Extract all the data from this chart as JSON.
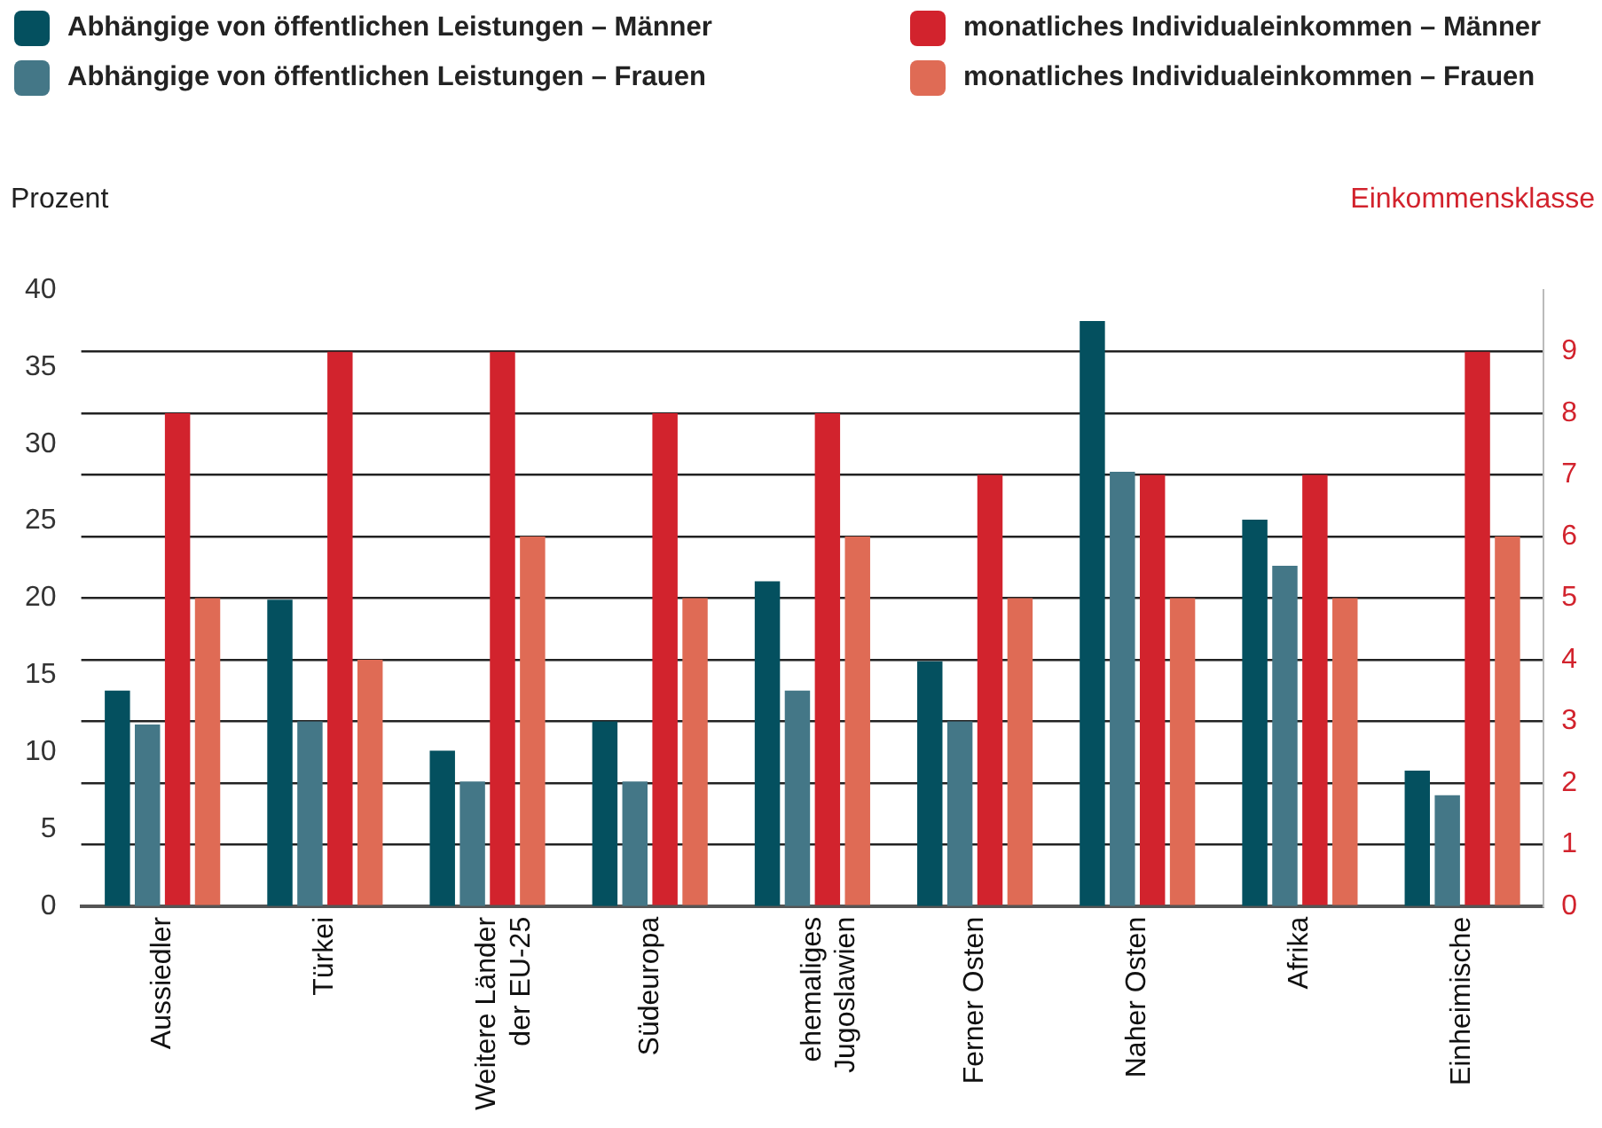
{
  "chart_data": {
    "type": "bar",
    "ylabel": "Prozent",
    "y2label": "Einkommensklasse",
    "categories": [
      "Aussiedler",
      "Türkei",
      "Weitere Länder\nder EU-25",
      "Südeuropa",
      "ehemaliges\nJugoslawien",
      "Ferner Osten",
      "Naher Osten",
      "Afrika",
      "Einheimische"
    ],
    "series": [
      {
        "name": "Abhängige von öffentlichen Leistungen – Männer",
        "color": "#04505f",
        "values": [
          14.0,
          19.9,
          10.1,
          12.0,
          21.1,
          15.9,
          38.0,
          25.1,
          8.8
        ]
      },
      {
        "name": "Abhängige von öffentlichen Leistungen – Frauen",
        "color": "#447787",
        "values": [
          11.8,
          12.0,
          8.1,
          8.1,
          14.0,
          12.0,
          28.2,
          22.1,
          7.2
        ]
      },
      {
        "name": "monatliches Individualeinkommen – Männer",
        "color": "#d2232d",
        "axis": "y2",
        "values": [
          8,
          9,
          9,
          8,
          8,
          7,
          7,
          7,
          9
        ]
      },
      {
        "name": "monatliches Individualeinkommen – Frauen",
        "color": "#df6b55",
        "axis": "y2",
        "values": [
          5,
          4,
          6,
          5,
          6,
          5,
          5,
          5,
          6
        ]
      }
    ],
    "ylim": [
      0,
      40
    ],
    "yticks": [
      0,
      5,
      10,
      15,
      20,
      25,
      30,
      35,
      40
    ],
    "y2lim": [
      0,
      10
    ],
    "y2ticks": [
      0,
      1,
      2,
      3,
      4,
      5,
      6,
      7,
      8,
      9
    ],
    "grid": true,
    "legend": "top"
  }
}
